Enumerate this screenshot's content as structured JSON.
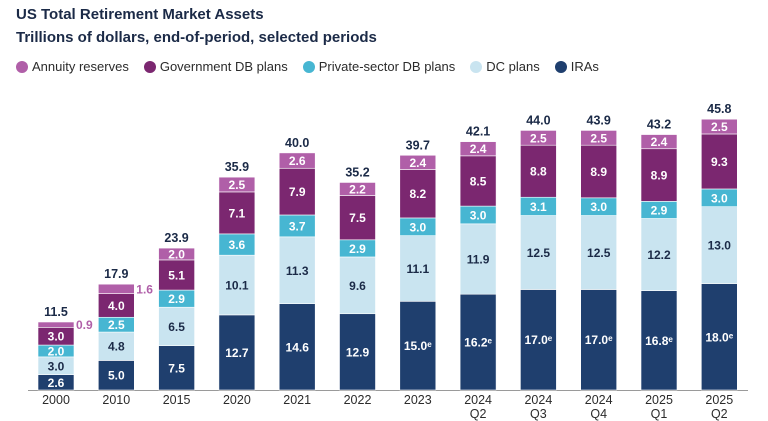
{
  "chart_data": {
    "type": "bar",
    "stacked": true,
    "title": "US Total Retirement Market Assets",
    "subtitle": "Trillions of dollars, end-of-period, selected periods",
    "categories": [
      [
        "2000"
      ],
      [
        "2010"
      ],
      [
        "2015"
      ],
      [
        "2020"
      ],
      [
        "2021"
      ],
      [
        "2022"
      ],
      [
        "2023"
      ],
      [
        "2024",
        "Q2"
      ],
      [
        "2024",
        "Q3"
      ],
      [
        "2024",
        "Q4"
      ],
      [
        "2025",
        "Q1"
      ],
      [
        "2025",
        "Q2"
      ]
    ],
    "totals": [
      "11.5",
      "17.9",
      "23.9",
      "35.9",
      "40.0",
      "35.2",
      "39.7",
      "42.1",
      "44.0",
      "43.9",
      "43.2",
      "45.8"
    ],
    "series": [
      {
        "name": "IRAs",
        "color": "#1f3f6e",
        "label_color": "#ffffff",
        "values": [
          2.6,
          5.0,
          7.5,
          12.7,
          14.6,
          12.9,
          15.0,
          16.2,
          17.0,
          17.0,
          16.8,
          18.0
        ],
        "labels": [
          "2.6",
          "5.0",
          "7.5",
          "12.7",
          "14.6",
          "12.9",
          "15.0ᵉ",
          "16.2ᵉ",
          "17.0ᵉ",
          "17.0ᵉ",
          "16.8ᵉ",
          "18.0ᵉ"
        ]
      },
      {
        "name": "DC plans",
        "color": "#c9e4f0",
        "label_color": "#1b2a47",
        "values": [
          3.0,
          4.8,
          6.5,
          10.1,
          11.3,
          9.6,
          11.1,
          11.9,
          12.5,
          12.5,
          12.2,
          13.0
        ],
        "labels": [
          "3.0",
          "4.8",
          "6.5",
          "10.1",
          "11.3",
          "9.6",
          "11.1",
          "11.9",
          "12.5",
          "12.5",
          "12.2",
          "13.0"
        ]
      },
      {
        "name": "Private-sector DB plans",
        "color": "#47b6d2",
        "label_color": "#ffffff",
        "values": [
          2.0,
          2.5,
          2.9,
          3.6,
          3.7,
          2.9,
          3.0,
          3.0,
          3.1,
          3.0,
          2.9,
          3.0
        ],
        "labels": [
          "2.0",
          "2.5",
          "2.9",
          "3.6",
          "3.7",
          "2.9",
          "3.0",
          "3.0",
          "3.1",
          "3.0",
          "2.9",
          "3.0"
        ]
      },
      {
        "name": "Government DB plans",
        "color": "#7b2770",
        "label_color": "#ffffff",
        "values": [
          3.0,
          4.0,
          5.1,
          7.1,
          7.9,
          7.5,
          8.2,
          8.5,
          8.8,
          8.9,
          8.9,
          9.3
        ],
        "labels": [
          "3.0",
          "4.0",
          "5.1",
          "7.1",
          "7.9",
          "7.5",
          "8.2",
          "8.5",
          "8.8",
          "8.9",
          "8.9",
          "9.3"
        ]
      },
      {
        "name": "Annuity reserves",
        "color": "#b05fa8",
        "label_color": "#ffffff",
        "values": [
          0.9,
          1.6,
          2.0,
          2.5,
          2.6,
          2.2,
          2.4,
          2.4,
          2.5,
          2.5,
          2.4,
          2.5
        ],
        "labels": [
          "0.9",
          "1.6",
          "2.0",
          "2.5",
          "2.6",
          "2.2",
          "2.4",
          "2.4",
          "2.5",
          "2.5",
          "2.4",
          "2.5"
        ],
        "outside_label": [
          true,
          true,
          false,
          false,
          false,
          false,
          false,
          false,
          false,
          false,
          false,
          false
        ],
        "outside_label_color": "#b05fa8"
      }
    ],
    "legend_order": [
      "Annuity reserves",
      "Government DB plans",
      "Private-sector DB plans",
      "DC plans",
      "IRAs"
    ],
    "ylim": [
      0,
      46
    ],
    "legend_position": "top-left",
    "grid": false
  }
}
